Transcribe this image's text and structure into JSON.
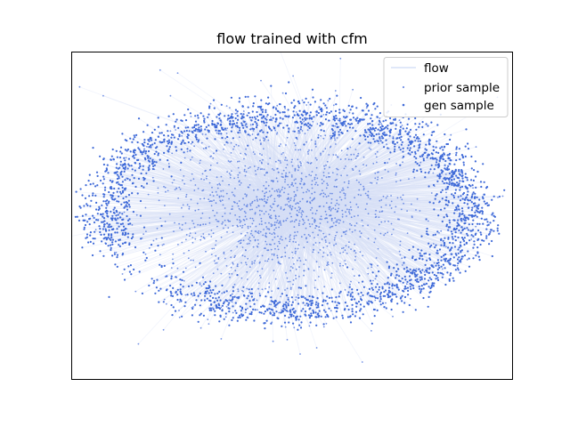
{
  "chart_data": {
    "type": "scatter",
    "title": "flow trained with cfm",
    "xlabel": "",
    "ylabel": "",
    "xticks": [],
    "yticks": [],
    "grid": false,
    "legend": {
      "placement": "top-right",
      "entries": [
        "flow",
        "prior sample",
        "gen sample"
      ]
    },
    "colors": {
      "flow": "#d6e0f7",
      "prior": "#5a7fe0",
      "gen": "#3f6ad8",
      "axes": "#000000"
    },
    "xlim": [
      -1.0,
      1.0
    ],
    "ylim": [
      -1.0,
      1.0
    ],
    "series": [
      {
        "name": "flow",
        "kind": "trajectory",
        "description_of_shape": "straight lines connecting each prior sample to its generated sample"
      },
      {
        "name": "prior sample",
        "kind": "points",
        "distribution": "gaussian blob",
        "center": [
          -0.05,
          0.05
        ],
        "spread": [
          0.3,
          0.3
        ],
        "count": 1500
      },
      {
        "name": "gen sample",
        "kind": "points",
        "distribution": "noisy ring (open spiral)",
        "center": [
          -0.02,
          0.02
        ],
        "radius_x": 0.82,
        "radius_y": 0.62,
        "noise": 0.045,
        "count": 2400
      }
    ]
  }
}
